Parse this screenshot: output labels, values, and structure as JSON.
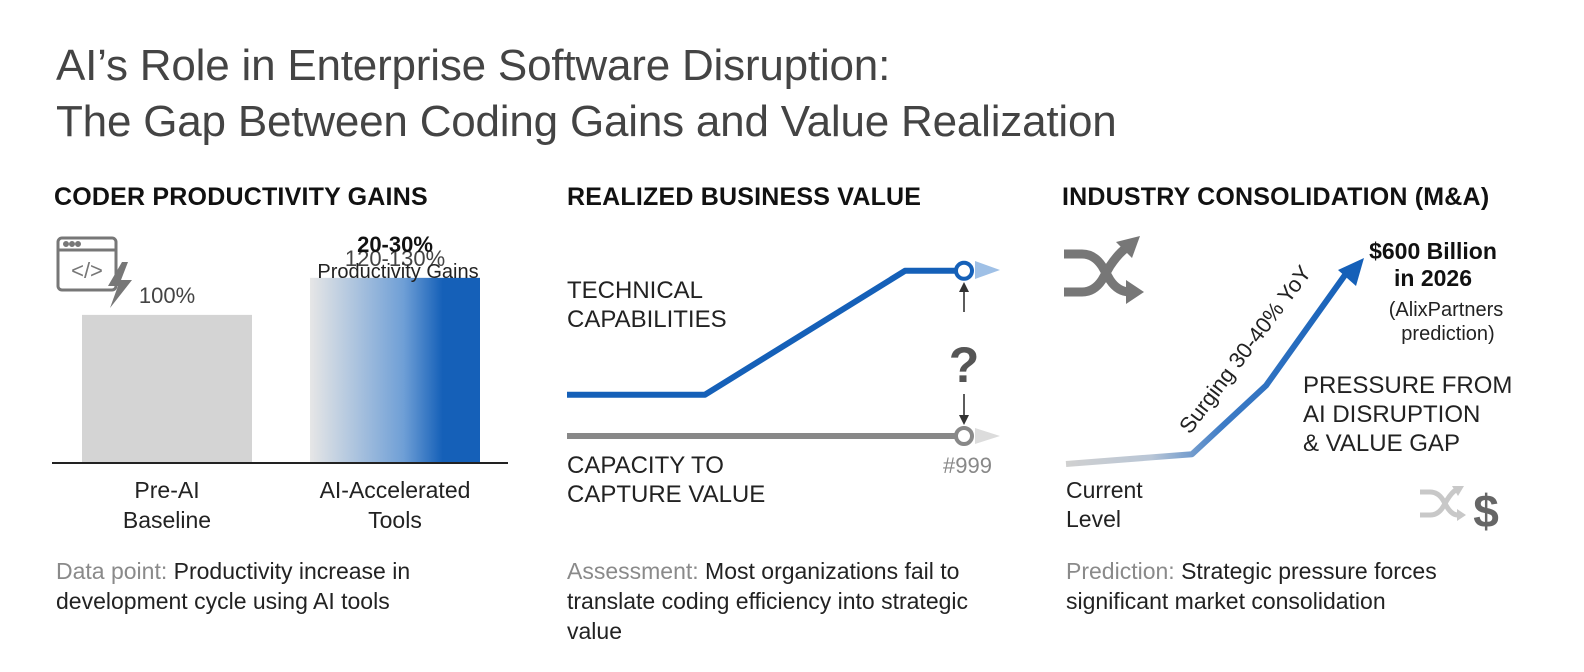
{
  "title": {
    "line1": "AI’s Role in Enterprise Software Disruption:",
    "line2": "The Gap Between Coding Gains and Value Realization"
  },
  "panels": {
    "productivity": {
      "heading": "CODER PRODUCTIVITY GAINS",
      "icon": "code-window-lightning-icon",
      "gain_headline": "20-30%",
      "gain_sub": "Productivity Gains",
      "footnote_lead": "Data point:",
      "footnote_line1": "Productivity increase in",
      "footnote_line2": "development cycle using AI tools"
    },
    "value": {
      "heading": "REALIZED BUSINESS VALUE",
      "tech_label_1": "TECHNICAL",
      "tech_label_2": "CAPABILITIES",
      "capture_label_1": "CAPACITY TO",
      "capture_label_2": "CAPTURE VALUE",
      "gap_mark": "?",
      "code_tag": "#999",
      "footnote_lead": "Assessment:",
      "footnote_line1": "Most organizations fail to",
      "footnote_line2": "translate coding efficiency into strategic",
      "footnote_line3": "value"
    },
    "consolidation": {
      "heading": "INDUSTRY CONSOLIDATION (M&A)",
      "shuffle_icon": "shuffle-arrows-icon",
      "dollar_icon": "shuffle-dollar-icon",
      "target_1": "$600 Billion",
      "target_2": "in 2026",
      "source_1": "(AlixPartners",
      "source_2": "prediction)",
      "trend_label": "Surging 30-40% YoY",
      "pressure_1": "PRESSURE FROM",
      "pressure_2": "AI DISRUPTION",
      "pressure_3": "& VALUE GAP",
      "start_1": "Current",
      "start_2": "Level",
      "footnote_lead": "Prediction:",
      "footnote_line1": "Strategic pressure forces",
      "footnote_line2": "significant market consolidation"
    }
  },
  "colors": {
    "blue": "#1560b8",
    "gray": "#888888",
    "light_gray": "#d4d4d4",
    "text_gray": "#8a8a8a"
  },
  "chart_data": [
    {
      "type": "bar",
      "categories": [
        "Pre-AI Baseline",
        "AI-Accelerated Tools"
      ],
      "category_lines": [
        [
          "Pre-AI",
          "Baseline"
        ],
        [
          "AI-Accelerated",
          "Tools"
        ]
      ],
      "values": [
        100,
        125
      ],
      "value_labels": [
        "100%",
        "120-130%"
      ],
      "ylim": [
        0,
        160
      ],
      "grid": false
    },
    {
      "type": "line",
      "series": [
        {
          "key": "technical",
          "x": [
            0,
            1,
            2
          ],
          "values": [
            2,
            2,
            5
          ]
        },
        {
          "key": "capture",
          "x": [
            0,
            2
          ],
          "values": [
            1,
            1
          ]
        }
      ]
    },
    {
      "type": "line",
      "series": [
        {
          "key": "ma_trend",
          "x": [
            0,
            1,
            2,
            3
          ],
          "values": [
            0,
            0.5,
            4,
            10
          ]
        }
      ]
    }
  ]
}
